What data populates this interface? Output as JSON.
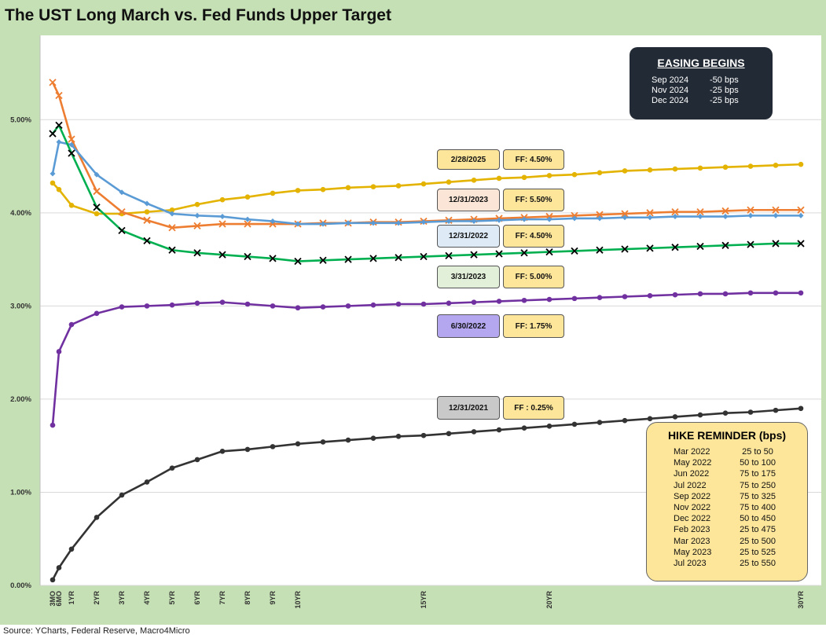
{
  "title": "The UST Long March vs. Fed Funds Upper Target",
  "source": "Source: YCharts, Federal Reserve, Macro4Micro",
  "easing_box": {
    "heading": "EASING BEGINS",
    "rows": [
      {
        "date": "Sep 2024",
        "value": "-50 bps"
      },
      {
        "date": "Nov 2024",
        "value": "-25 bps"
      },
      {
        "date": "Dec 2024",
        "value": "-25 bps"
      }
    ]
  },
  "hike_box": {
    "heading": "HIKE REMINDER (bps)",
    "rows": [
      {
        "date": "Mar 2022",
        "value": "25 to 50"
      },
      {
        "date": "May 2022",
        "value": "50 to 100"
      },
      {
        "date": "Jun 2022",
        "value": "75 to 175"
      },
      {
        "date": "Jul 2022",
        "value": "75 to 250"
      },
      {
        "date": "Sep 2022",
        "value": "75 to 325"
      },
      {
        "date": "Nov 2022",
        "value": "75 to 400"
      },
      {
        "date": "Dec 2022",
        "value": "50 to 450"
      },
      {
        "date": "Feb 2023",
        "value": "25 to 475"
      },
      {
        "date": "Mar 2023",
        "value": "25 to 500"
      },
      {
        "date": "May 2023",
        "value": "25 to 525"
      },
      {
        "date": "Jul 2023",
        "value": "25 to 550"
      }
    ]
  },
  "labels": [
    {
      "date": "2/28/2025",
      "ff": "FF: 4.50%",
      "date_color": "#fde59a"
    },
    {
      "date": "12/31/2023",
      "ff": "FF: 5.50%",
      "date_color": "#fbe5d6"
    },
    {
      "date": "12/31/2022",
      "ff": "FF: 4.50%",
      "date_color": "#deebf7"
    },
    {
      "date": "3/31/2023",
      "ff": "FF: 5.00%",
      "date_color": "#e2f0d9"
    },
    {
      "date": "6/30/2022",
      "ff": "FF: 1.75%",
      "date_color": "#b4a7f0"
    },
    {
      "date": "12/31/2021",
      "ff": "FF : 0.25%",
      "date_color": "#c9c9c9"
    }
  ],
  "chart_data": {
    "type": "line",
    "title": "The UST Long March vs. Fed Funds Upper Target",
    "x_positions": [
      0.25,
      0.5,
      1,
      2,
      3,
      4,
      5,
      6,
      7,
      8,
      9,
      10,
      11,
      12,
      13,
      14,
      15,
      16,
      17,
      18,
      19,
      20,
      21,
      22,
      23,
      24,
      25,
      26,
      27,
      28,
      29,
      30
    ],
    "x_tick_labels": [
      {
        "x": 0.25,
        "label": "3MO"
      },
      {
        "x": 0.5,
        "label": "6MO"
      },
      {
        "x": 1,
        "label": "1YR"
      },
      {
        "x": 2,
        "label": "2YR"
      },
      {
        "x": 3,
        "label": "3YR"
      },
      {
        "x": 4,
        "label": "4YR"
      },
      {
        "x": 5,
        "label": "5YR"
      },
      {
        "x": 6,
        "label": "6YR"
      },
      {
        "x": 7,
        "label": "7YR"
      },
      {
        "x": 8,
        "label": "8YR"
      },
      {
        "x": 9,
        "label": "9YR"
      },
      {
        "x": 10,
        "label": "10YR"
      },
      {
        "x": 15,
        "label": "15YR"
      },
      {
        "x": 20,
        "label": "20YR"
      },
      {
        "x": 30,
        "label": "30YR"
      }
    ],
    "y_ticks": [
      "0.00%",
      "1.00%",
      "2.00%",
      "3.00%",
      "4.00%",
      "5.00%"
    ],
    "ylim": [
      0,
      5.0
    ],
    "grid": true,
    "series": [
      {
        "name": "2/28/2025",
        "color": "#e3b300",
        "marker": "dot",
        "values": [
          4.32,
          4.25,
          4.08,
          3.99,
          3.99,
          4.01,
          4.03,
          4.09,
          4.14,
          4.17,
          4.21,
          4.24,
          4.25,
          4.27,
          4.28,
          4.29,
          4.31,
          4.33,
          4.35,
          4.37,
          4.38,
          4.4,
          4.41,
          4.43,
          4.45,
          4.46,
          4.47,
          4.48,
          4.49,
          4.5,
          4.51,
          4.52
        ]
      },
      {
        "name": "12/31/2023",
        "color": "#ed7d31",
        "marker": "x",
        "values": [
          5.4,
          5.26,
          4.79,
          4.23,
          4.01,
          3.92,
          3.84,
          3.86,
          3.88,
          3.88,
          3.88,
          3.88,
          3.89,
          3.89,
          3.9,
          3.9,
          3.91,
          3.92,
          3.93,
          3.94,
          3.95,
          3.96,
          3.97,
          3.98,
          3.99,
          4.0,
          4.01,
          4.01,
          4.02,
          4.03,
          4.03,
          4.03
        ]
      },
      {
        "name": "12/31/2022",
        "color": "#5b9bd5",
        "marker": "diamond",
        "values": [
          4.42,
          4.76,
          4.73,
          4.41,
          4.22,
          4.1,
          3.99,
          3.97,
          3.96,
          3.93,
          3.91,
          3.88,
          3.88,
          3.89,
          3.89,
          3.89,
          3.9,
          3.91,
          3.91,
          3.92,
          3.93,
          3.93,
          3.94,
          3.94,
          3.95,
          3.95,
          3.96,
          3.96,
          3.96,
          3.97,
          3.97,
          3.97
        ]
      },
      {
        "name": "3/31/2023",
        "color": "#00b050",
        "marker": "x",
        "values": [
          4.85,
          4.94,
          4.64,
          4.06,
          3.81,
          3.7,
          3.6,
          3.57,
          3.55,
          3.53,
          3.51,
          3.48,
          3.49,
          3.5,
          3.51,
          3.52,
          3.53,
          3.54,
          3.55,
          3.56,
          3.57,
          3.58,
          3.59,
          3.6,
          3.61,
          3.62,
          3.63,
          3.64,
          3.65,
          3.66,
          3.67,
          3.67
        ]
      },
      {
        "name": "6/30/2022",
        "color": "#7030a0",
        "marker": "dot",
        "values": [
          1.72,
          2.51,
          2.8,
          2.92,
          2.99,
          3.0,
          3.01,
          3.03,
          3.04,
          3.02,
          3.0,
          2.98,
          2.99,
          3.0,
          3.01,
          3.02,
          3.02,
          3.03,
          3.04,
          3.05,
          3.06,
          3.07,
          3.08,
          3.09,
          3.1,
          3.11,
          3.12,
          3.13,
          3.13,
          3.14,
          3.14,
          3.14
        ]
      },
      {
        "name": "12/31/2021",
        "color": "#333333",
        "marker": "dot",
        "values": [
          0.06,
          0.19,
          0.39,
          0.73,
          0.97,
          1.11,
          1.26,
          1.35,
          1.44,
          1.46,
          1.49,
          1.52,
          1.54,
          1.56,
          1.58,
          1.6,
          1.61,
          1.63,
          1.65,
          1.67,
          1.69,
          1.71,
          1.73,
          1.75,
          1.77,
          1.79,
          1.81,
          1.83,
          1.85,
          1.86,
          1.88,
          1.9
        ]
      }
    ]
  }
}
